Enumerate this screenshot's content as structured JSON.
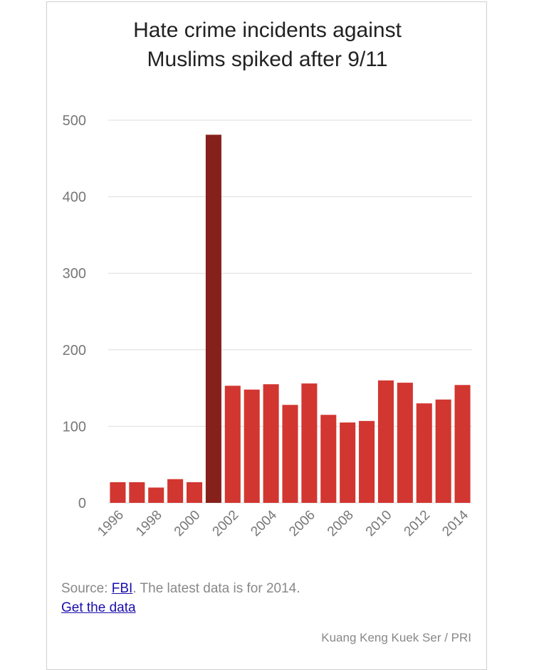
{
  "chart_data": {
    "type": "bar",
    "title_lines": [
      "Hate crime incidents against",
      "Muslims spiked after 9/11"
    ],
    "categories": [
      "1996",
      "1997",
      "1998",
      "1999",
      "2000",
      "2001",
      "2002",
      "2003",
      "2004",
      "2005",
      "2006",
      "2007",
      "2008",
      "2009",
      "2010",
      "2011",
      "2012",
      "2013",
      "2014"
    ],
    "tick_labels": [
      "1996",
      "1998",
      "2000",
      "2002",
      "2004",
      "2006",
      "2008",
      "2010",
      "2012",
      "2014"
    ],
    "values": [
      27,
      27,
      20,
      31,
      27,
      481,
      153,
      148,
      155,
      128,
      156,
      115,
      105,
      107,
      160,
      157,
      130,
      135,
      154
    ],
    "highlight_category": "2001",
    "ylim": [
      0,
      500
    ],
    "yticks": [
      0,
      100,
      200,
      300,
      400,
      500
    ],
    "grid": true,
    "colors": {
      "bar": "#d23630",
      "highlight": "#85201b",
      "grid": "#dddddd",
      "axis_text": "#777777"
    }
  },
  "source": {
    "prefix": "Source: ",
    "link_text": "FBI",
    "suffix": ". The latest data is for 2014.",
    "get_data": "Get the data"
  },
  "credit": "Kuang Keng Kuek Ser / PRI"
}
